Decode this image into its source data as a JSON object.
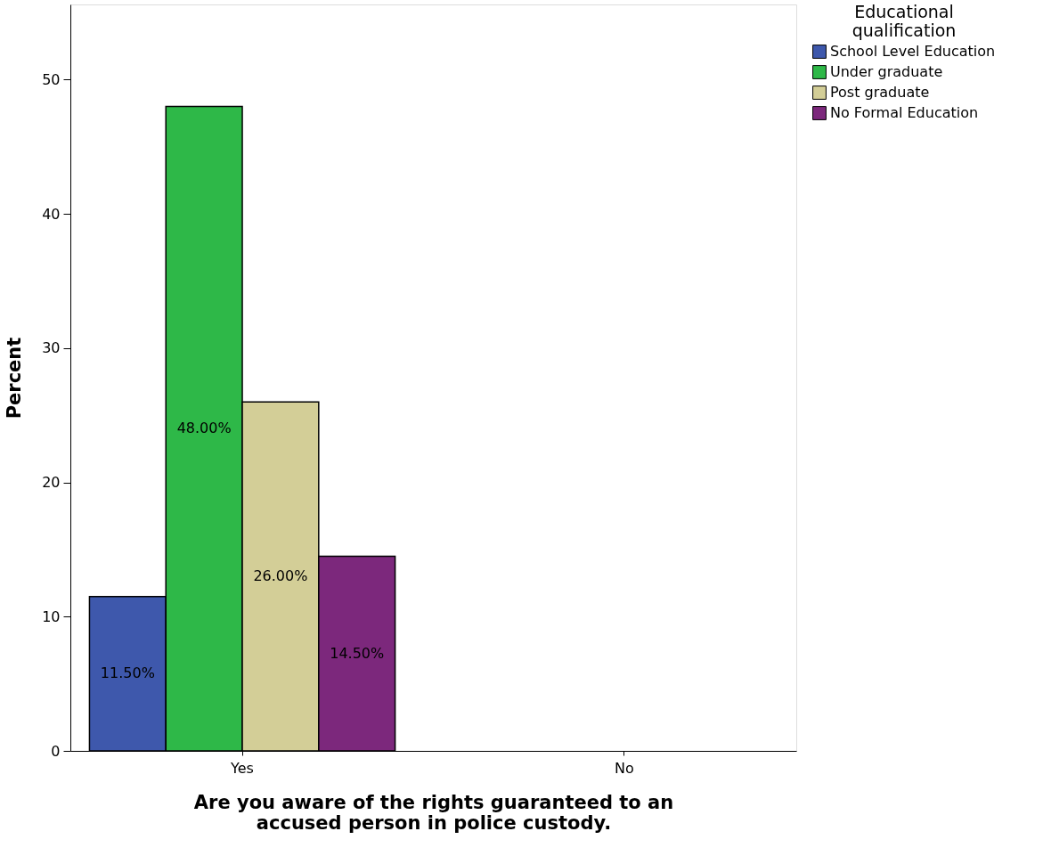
{
  "chart_data": {
    "type": "bar",
    "xlabel": "Are you aware of the rights guaranteed to an accused person in police custody.",
    "ylabel": "Percent",
    "legend_title": "Educational qualification",
    "categories": [
      "Yes",
      "No"
    ],
    "series": [
      {
        "name": "School Level Education",
        "color": "#3e58ac",
        "values": [
          11.5,
          null
        ],
        "value_labels": [
          "11.50%",
          null
        ]
      },
      {
        "name": "Under graduate",
        "color": "#2eb848",
        "values": [
          48.0,
          null
        ],
        "value_labels": [
          "48.00%",
          null
        ]
      },
      {
        "name": "Post graduate",
        "color": "#d3ce97",
        "values": [
          26.0,
          null
        ],
        "value_labels": [
          "26.00%",
          null
        ]
      },
      {
        "name": "No Formal Education",
        "color": "#7c287c",
        "values": [
          14.5,
          null
        ],
        "value_labels": [
          "14.50%",
          null
        ]
      }
    ],
    "ylim": [
      0,
      55.6
    ],
    "yticks": [
      0,
      10,
      20,
      30,
      40,
      50
    ],
    "grid": false,
    "legend": "top right"
  }
}
